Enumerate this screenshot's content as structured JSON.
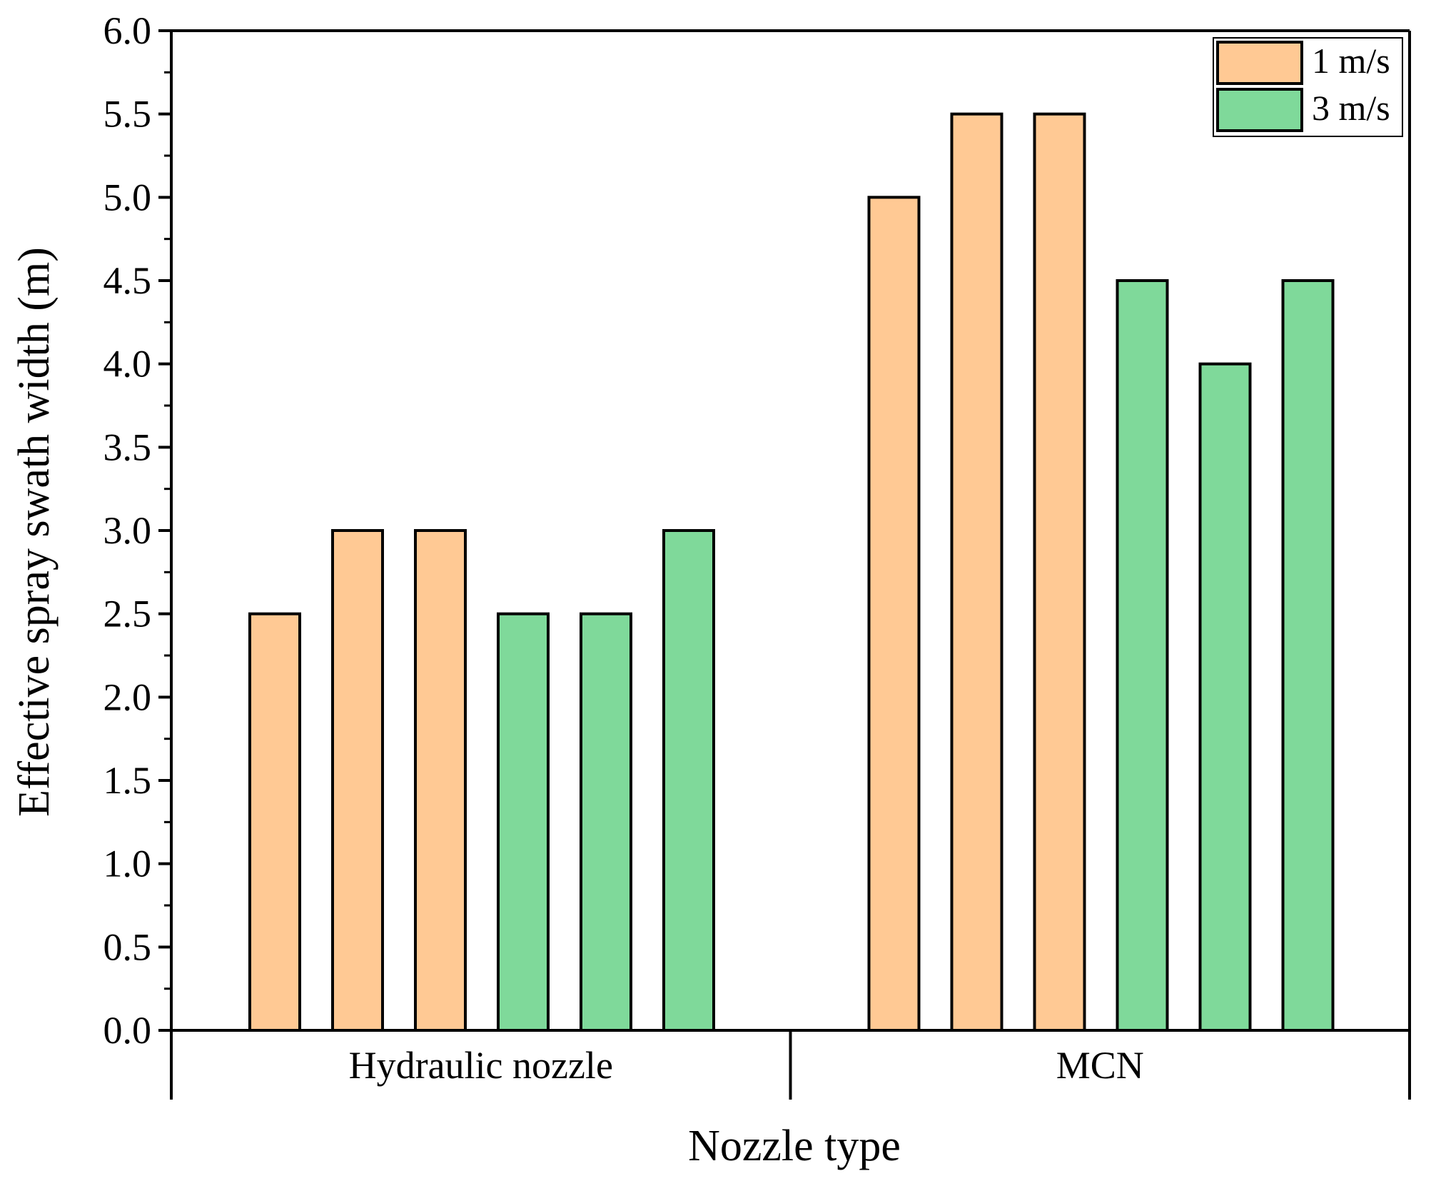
{
  "chart_data": {
    "type": "bar",
    "title": "",
    "xlabel": "Nozzle type",
    "ylabel": "Effective spray swath width (m)",
    "ylim": [
      0,
      6.0
    ],
    "ytick_step": 0.5,
    "ytick_labels": [
      "0.0",
      "0.5",
      "1.0",
      "1.5",
      "2.0",
      "2.5",
      "3.0",
      "3.5",
      "4.0",
      "4.5",
      "5.0",
      "5.5",
      "6.0"
    ],
    "grid": false,
    "legend_position": "top-right",
    "categories": [
      "Hydraulic nozzle",
      "MCN"
    ],
    "series": [
      {
        "name": "1 m/s",
        "color": "#FFC994",
        "values": [
          [
            2.5,
            3.0,
            3.0
          ],
          [
            5.0,
            5.5,
            5.5
          ]
        ]
      },
      {
        "name": "3 m/s",
        "color": "#7FD99A",
        "values": [
          [
            2.5,
            2.5,
            3.0
          ],
          [
            4.5,
            4.0,
            4.5
          ]
        ]
      }
    ]
  }
}
